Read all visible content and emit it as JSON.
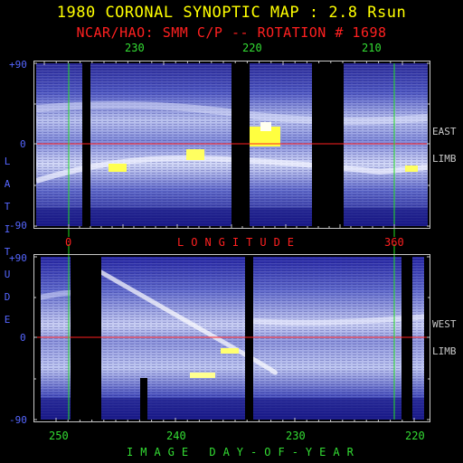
{
  "header": {
    "title": "1980 CORONAL SYNOPTIC MAP : 2.8 Rsun",
    "subtitle": "NCAR/HAO: SMM C/P -- ROTATION # 1698"
  },
  "top_panel": {
    "top_ticks": [
      "230",
      "220",
      "210"
    ],
    "y_ticks": [
      "+90",
      "0",
      "-90"
    ],
    "limb_label": [
      "EAST",
      "LIMB"
    ],
    "longitude_ticks": [
      "0",
      "360"
    ],
    "longitude_label": "LONGITUDE"
  },
  "bottom_panel": {
    "y_ticks": [
      "+90",
      "0",
      "-90"
    ],
    "limb_label": [
      "WEST",
      "LIMB"
    ],
    "day_ticks": [
      "250",
      "240",
      "230",
      "220"
    ],
    "day_label": "IMAGE DAY-OF-YEAR"
  },
  "side_label": "LATITUDE",
  "colors": {
    "background": "#000000",
    "map_deep": "#1c1c8c",
    "map_mid": "#5a64c8",
    "map_bright": "#e8ecff",
    "hotspot": "#ffff50",
    "equator_line": "#ff2020",
    "marker_line": "#22dd22",
    "title": "#ffff00"
  }
}
